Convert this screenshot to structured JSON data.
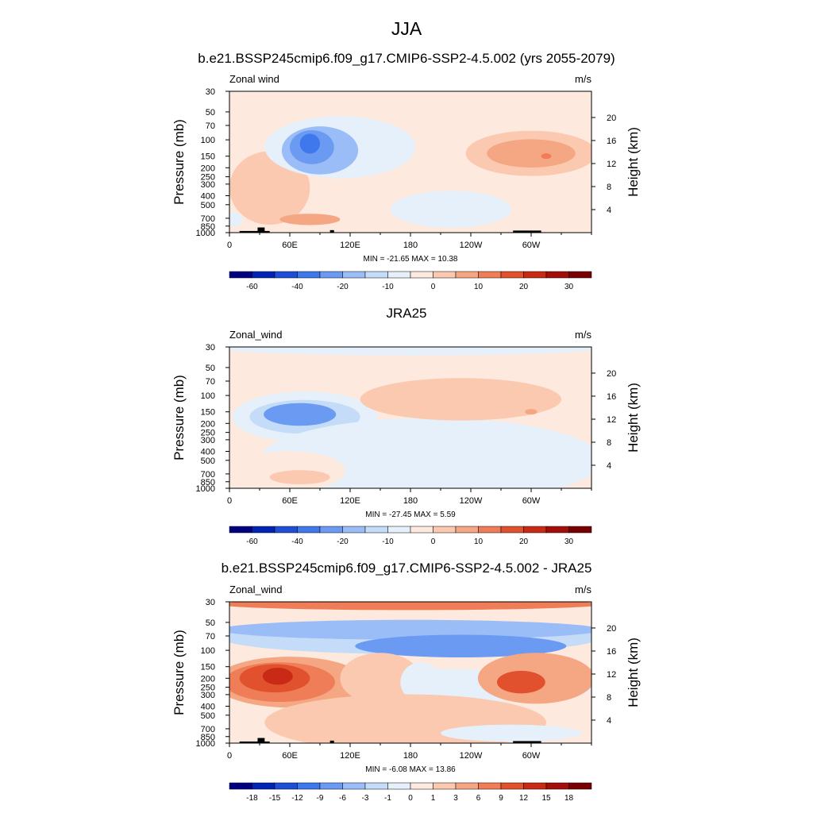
{
  "figure_title": "JJA",
  "colors": {
    "standard_bar": [
      "#000080",
      "#0025b5",
      "#1f4fd6",
      "#3f77ec",
      "#6b9af3",
      "#9bbdf7",
      "#c4dcf8",
      "#e6f0fa",
      "#fde9dd",
      "#fac9b0",
      "#f5a683",
      "#ee7d58",
      "#e1512e",
      "#c82a16",
      "#a30f08",
      "#780000"
    ],
    "diff_bar": [
      "#000080",
      "#0025b5",
      "#1f4fd6",
      "#3f77ec",
      "#6b9af3",
      "#9bbdf7",
      "#c4dcf8",
      "#e6f0fa",
      "#fde9dd",
      "#fac9b0",
      "#f5a683",
      "#ee7d58",
      "#e1512e",
      "#c82a16",
      "#a30f08",
      "#780000"
    ],
    "topography": "#000000",
    "frame": "#000000"
  },
  "chart_data": [
    {
      "type": "heatmap",
      "title": "b.e21.BSSP245cmip6.f09_g17.CMIP6-SSP2-4.5.002 (yrs 2055-2079)",
      "left_label": "Zonal wind",
      "right_label": "m/s",
      "ylabel": "Pressure (mb)",
      "y2label": "Height (km)",
      "x_ticks": [
        "0",
        "60E",
        "120E",
        "180",
        "120W",
        "60W"
      ],
      "y_ticks": [
        "30",
        "50",
        "70",
        "100",
        "150",
        "200",
        "250",
        "300",
        "400",
        "500",
        "700",
        "850",
        "1000"
      ],
      "y2_ticks": [
        "20",
        "16",
        "12",
        "8",
        "4"
      ],
      "stats": "MIN = -21.65  MAX =  10.38",
      "colorbar_labels": [
        "-60",
        "-40",
        "-20",
        "-10",
        "0",
        "10",
        "20",
        "30"
      ],
      "min": -21.65,
      "max": 10.38
    },
    {
      "type": "heatmap",
      "title": "JRA25",
      "left_label": "Zonal_wind",
      "right_label": "m/s",
      "ylabel": "Pressure (mb)",
      "y2label": "Height (km)",
      "x_ticks": [
        "0",
        "60E",
        "120E",
        "180",
        "120W",
        "60W"
      ],
      "y_ticks": [
        "30",
        "50",
        "70",
        "100",
        "150",
        "200",
        "250",
        "300",
        "400",
        "500",
        "700",
        "850",
        "1000"
      ],
      "y2_ticks": [
        "20",
        "16",
        "12",
        "8",
        "4"
      ],
      "stats": "MIN = -27.45  MAX =   5.59",
      "colorbar_labels": [
        "-60",
        "-40",
        "-20",
        "-10",
        "0",
        "10",
        "20",
        "30"
      ],
      "min": -27.45,
      "max": 5.59
    },
    {
      "type": "heatmap",
      "title": "b.e21.BSSP245cmip6.f09_g17.CMIP6-SSP2-4.5.002 - JRA25",
      "left_label": "Zonal_wind",
      "right_label": "m/s",
      "ylabel": "Pressure (mb)",
      "y2label": "Height (km)",
      "x_ticks": [
        "0",
        "60E",
        "120E",
        "180",
        "120W",
        "60W"
      ],
      "y_ticks": [
        "30",
        "50",
        "70",
        "100",
        "150",
        "200",
        "250",
        "300",
        "400",
        "500",
        "700",
        "850",
        "1000"
      ],
      "y2_ticks": [
        "20",
        "16",
        "12",
        "8",
        "4"
      ],
      "stats": "MIN =  -6.08  MAX =  13.86",
      "colorbar_labels": [
        "-18",
        "-15",
        "-12",
        "-9",
        "-6",
        "-3",
        "-1",
        "0",
        "1",
        "3",
        "6",
        "9",
        "12",
        "15",
        "18"
      ],
      "min": -6.08,
      "max": 13.86
    }
  ]
}
